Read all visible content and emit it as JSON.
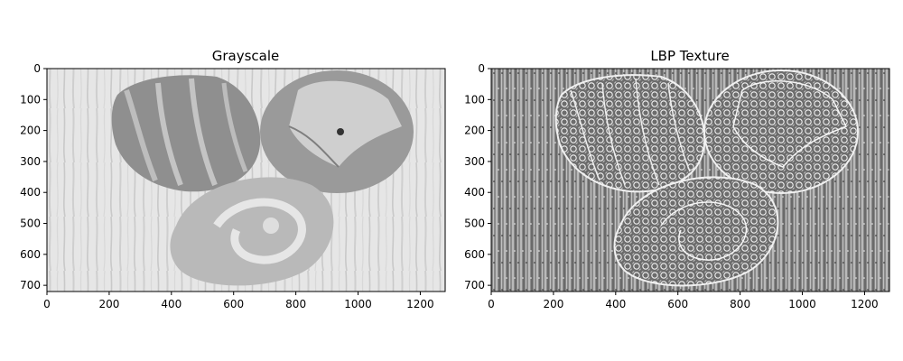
{
  "chart_data": [
    {
      "type": "image",
      "title": "Grayscale",
      "xlim": [
        0,
        1280
      ],
      "ylim": [
        720,
        0
      ],
      "xticks": [
        0,
        200,
        400,
        600,
        800,
        1000,
        1200
      ],
      "yticks": [
        0,
        100,
        200,
        300,
        400,
        500,
        600,
        700
      ],
      "content": "grayscale photo of three peeled orange peels on a striped wooden surface"
    },
    {
      "type": "image",
      "title": "LBP Texture",
      "xlim": [
        0,
        1280
      ],
      "ylim": [
        720,
        0
      ],
      "xticks": [
        0,
        200,
        400,
        600,
        800,
        1000,
        1200
      ],
      "yticks": [
        0,
        100,
        200,
        300,
        400,
        500,
        600,
        700
      ],
      "content": "local binary pattern texture map of the same photo"
    }
  ]
}
